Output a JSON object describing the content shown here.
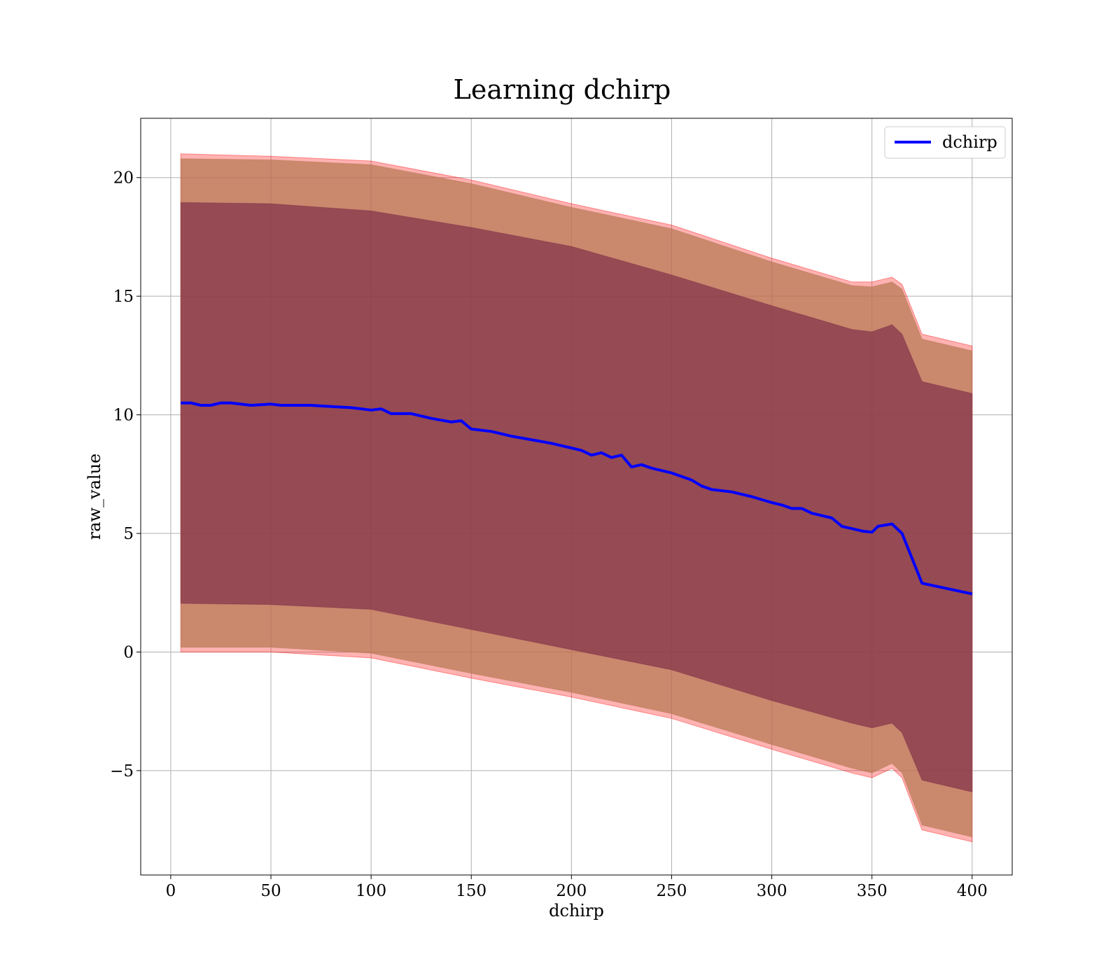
{
  "chart_data": {
    "type": "line",
    "title": "Learning dchirp",
    "xlabel": "dchirp",
    "ylabel": "raw_value",
    "xlim": [
      -15,
      420
    ],
    "ylim": [
      -9.4,
      22.5
    ],
    "x_ticks": [
      0,
      50,
      100,
      150,
      200,
      250,
      300,
      350,
      400
    ],
    "x_tick_labels": [
      "0",
      "50",
      "100",
      "150",
      "200",
      "250",
      "300",
      "350",
      "400"
    ],
    "y_ticks": [
      -5,
      0,
      5,
      10,
      15,
      20
    ],
    "y_tick_labels": [
      "−5",
      "0",
      "5",
      "10",
      "15",
      "20"
    ],
    "grid": true,
    "legend_position": "top-right",
    "colors": {
      "mean_line": "#0000ff",
      "outer_band_fill": "#ff0000",
      "outer_band_alpha": 0.3,
      "middle_band_fill": "#b87a55",
      "middle_band_alpha": 0.75,
      "inner_band_fill": "#7a2a45",
      "inner_band_alpha": 0.65
    },
    "series": [
      {
        "name": "dchirp",
        "x": [
          5,
          10,
          15,
          20,
          25,
          30,
          40,
          50,
          55,
          60,
          70,
          80,
          90,
          100,
          105,
          110,
          120,
          130,
          140,
          145,
          150,
          160,
          170,
          180,
          190,
          200,
          205,
          210,
          215,
          220,
          225,
          230,
          235,
          240,
          250,
          260,
          265,
          270,
          280,
          290,
          300,
          305,
          310,
          315,
          320,
          325,
          330,
          335,
          340,
          345,
          350,
          353,
          360,
          365,
          375,
          400
        ],
        "y": [
          10.5,
          10.5,
          10.4,
          10.4,
          10.5,
          10.5,
          10.4,
          10.45,
          10.4,
          10.4,
          10.4,
          10.35,
          10.3,
          10.2,
          10.25,
          10.05,
          10.05,
          9.85,
          9.7,
          9.75,
          9.4,
          9.3,
          9.1,
          8.95,
          8.8,
          8.6,
          8.5,
          8.3,
          8.4,
          8.2,
          8.3,
          7.8,
          7.9,
          7.75,
          7.55,
          7.25,
          7.0,
          6.85,
          6.75,
          6.55,
          6.3,
          6.2,
          6.05,
          6.05,
          5.85,
          5.75,
          5.65,
          5.3,
          5.2,
          5.1,
          5.05,
          5.3,
          5.4,
          5.0,
          2.9,
          2.45
        ]
      }
    ],
    "bands": [
      {
        "name": "outer",
        "x": [
          5,
          50,
          100,
          150,
          200,
          250,
          300,
          340,
          350,
          360,
          365,
          375,
          400
        ],
        "upper": [
          21.0,
          20.9,
          20.7,
          19.9,
          18.9,
          18.0,
          16.6,
          15.6,
          15.6,
          15.8,
          15.5,
          13.4,
          12.9
        ],
        "lower": [
          0.0,
          0.0,
          -0.25,
          -1.1,
          -1.9,
          -2.8,
          -4.1,
          -5.1,
          -5.3,
          -4.9,
          -5.3,
          -7.5,
          -8.0
        ]
      },
      {
        "name": "middle",
        "x": [
          5,
          50,
          100,
          150,
          200,
          250,
          300,
          340,
          350,
          360,
          365,
          375,
          400
        ],
        "upper": [
          20.8,
          20.75,
          20.55,
          19.75,
          18.75,
          17.85,
          16.45,
          15.45,
          15.4,
          15.6,
          15.3,
          13.2,
          12.7
        ],
        "lower": [
          0.2,
          0.2,
          -0.05,
          -0.9,
          -1.7,
          -2.6,
          -3.9,
          -4.9,
          -5.1,
          -4.7,
          -5.1,
          -7.3,
          -7.8
        ]
      },
      {
        "name": "inner",
        "x": [
          5,
          50,
          100,
          150,
          200,
          250,
          300,
          340,
          350,
          360,
          365,
          375,
          400
        ],
        "upper": [
          18.95,
          18.9,
          18.6,
          17.9,
          17.1,
          15.9,
          14.6,
          13.6,
          13.5,
          13.8,
          13.4,
          11.4,
          10.9
        ],
        "lower": [
          2.05,
          2.0,
          1.8,
          0.95,
          0.1,
          -0.75,
          -2.05,
          -3.0,
          -3.2,
          -3.0,
          -3.4,
          -5.4,
          -5.9
        ]
      }
    ]
  }
}
